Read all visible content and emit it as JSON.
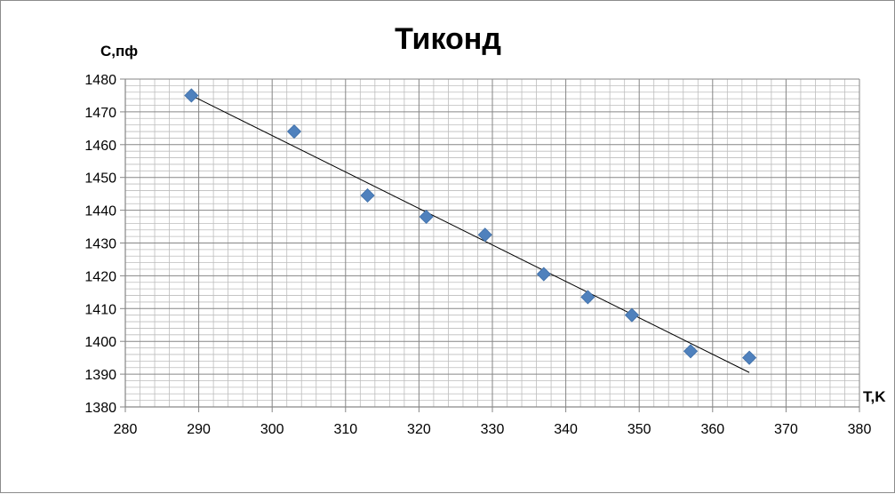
{
  "chart_data": {
    "type": "scatter",
    "title": "Тиконд",
    "xlabel": "T,K",
    "ylabel": "C,пф",
    "xlim": [
      280,
      380
    ],
    "ylim": [
      1380,
      1480
    ],
    "x_ticks": [
      "280",
      "290",
      "300",
      "310",
      "320",
      "330",
      "340",
      "350",
      "360",
      "370",
      "380"
    ],
    "y_ticks": [
      "1380",
      "1390",
      "1400",
      "1410",
      "1420",
      "1430",
      "1440",
      "1450",
      "1460",
      "1470",
      "1480"
    ],
    "grid": true,
    "points": [
      {
        "x": 289,
        "y": 1475
      },
      {
        "x": 303,
        "y": 1464
      },
      {
        "x": 313,
        "y": 1444.5
      },
      {
        "x": 321,
        "y": 1438
      },
      {
        "x": 329,
        "y": 1432.5
      },
      {
        "x": 337,
        "y": 1420.5
      },
      {
        "x": 343,
        "y": 1413.5
      },
      {
        "x": 349,
        "y": 1408
      },
      {
        "x": 357,
        "y": 1397
      },
      {
        "x": 365,
        "y": 1395
      }
    ],
    "trendline": {
      "x": [
        289,
        365
      ],
      "y": [
        1475,
        1390.5
      ]
    },
    "marker_color": "#4f81bd",
    "trendline_color": "#000000"
  }
}
